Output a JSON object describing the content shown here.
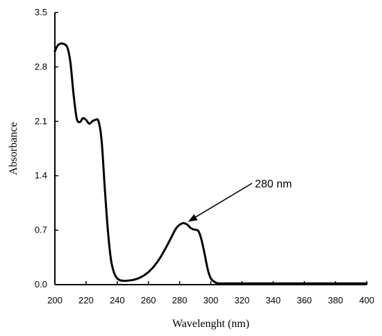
{
  "chart_data": {
    "type": "line",
    "title": "",
    "xlabel": "Wavelenght (nm)",
    "ylabel": "Absorbance",
    "xlim": [
      200,
      400
    ],
    "ylim": [
      0,
      3.5
    ],
    "x_ticks": [
      "200",
      "220",
      "240",
      "260",
      "280",
      "300",
      "320",
      "340",
      "360",
      "380",
      "400"
    ],
    "y_ticks": [
      "0.0",
      "0.7",
      "1.4",
      "2.1",
      "2.8",
      "3.5"
    ],
    "grid": false,
    "legend": "none",
    "series": [
      {
        "color": "#000000",
        "x": [
          200,
          202,
          205,
          208,
          210,
          212,
          214,
          216,
          218,
          220,
          222,
          224,
          226,
          228,
          230,
          232,
          234,
          236,
          238,
          240,
          242,
          244,
          246,
          250,
          254,
          258,
          262,
          266,
          270,
          274,
          278,
          282,
          285,
          287,
          289,
          292,
          294,
          296,
          298,
          300,
          302,
          304,
          306,
          310,
          320,
          340,
          360,
          380,
          400
        ],
        "y": [
          3.0,
          3.08,
          3.1,
          3.05,
          2.85,
          2.45,
          2.14,
          2.09,
          2.14,
          2.12,
          2.07,
          2.1,
          2.12,
          2.1,
          1.85,
          1.25,
          0.7,
          0.32,
          0.15,
          0.08,
          0.055,
          0.05,
          0.05,
          0.06,
          0.085,
          0.13,
          0.2,
          0.3,
          0.43,
          0.58,
          0.73,
          0.79,
          0.77,
          0.73,
          0.71,
          0.69,
          0.58,
          0.4,
          0.2,
          0.08,
          0.04,
          0.02,
          0.015,
          0.015,
          0.015,
          0.015,
          0.015,
          0.015,
          0.015
        ]
      }
    ],
    "annotations": [
      {
        "text": "280 nm",
        "x": 285,
        "y": 0.79
      }
    ]
  }
}
